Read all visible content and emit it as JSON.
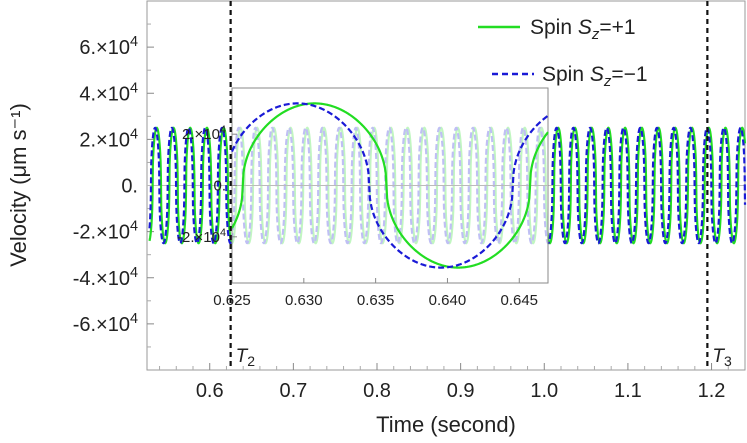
{
  "chart_data": {
    "type": "line",
    "xlabel": "Time (second)",
    "ylabel": "Velocity (μm s⁻¹)",
    "xlim": [
      0.525,
      1.24
    ],
    "ylim": [
      -80000,
      80000
    ],
    "x_ticks": [
      "0.6",
      "0.7",
      "0.8",
      "0.9",
      "1.0",
      "1.1",
      "1.2"
    ],
    "y_ticks": [
      {
        "value": 60000,
        "label": "6.×10⁴"
      },
      {
        "value": 40000,
        "label": "4.×10⁴"
      },
      {
        "value": 20000,
        "label": "2.×10⁴"
      },
      {
        "value": 0,
        "label": "0."
      },
      {
        "value": -20000,
        "label": "-2.×10⁴"
      },
      {
        "value": -40000,
        "label": "-4.×10⁴"
      },
      {
        "value": -60000,
        "label": "-6.×10⁴"
      }
    ],
    "markers": [
      {
        "x": 0.625,
        "label": "T₂"
      },
      {
        "x": 1.195,
        "label": "T₃"
      }
    ],
    "series": [
      {
        "name": "Spin S_z=+1",
        "color": "#22dd22",
        "style": "solid",
        "amplitude": 25000,
        "period": 0.02,
        "phase_deg": -120,
        "shape": "flat-top sinusoid"
      },
      {
        "name": "Spin S_z=−1",
        "color": "#1a1ad6",
        "style": "dashed",
        "amplitude": 25000,
        "period": 0.02,
        "phase_deg": -85,
        "shape": "flat-top sinusoid"
      }
    ],
    "inset": {
      "xlim": [
        0.625,
        0.647
      ],
      "ylim": [
        -38000,
        38000
      ],
      "x_ticks": [
        "0.625",
        "0.630",
        "0.635",
        "0.640",
        "0.645"
      ],
      "y_ticks": [
        {
          "value": 20000,
          "label": "2.×10⁴"
        },
        {
          "value": 0,
          "label": "0."
        },
        {
          "value": -20000,
          "label": "-2.×10⁴"
        }
      ]
    },
    "legend_position": "top-right",
    "grid": false
  }
}
